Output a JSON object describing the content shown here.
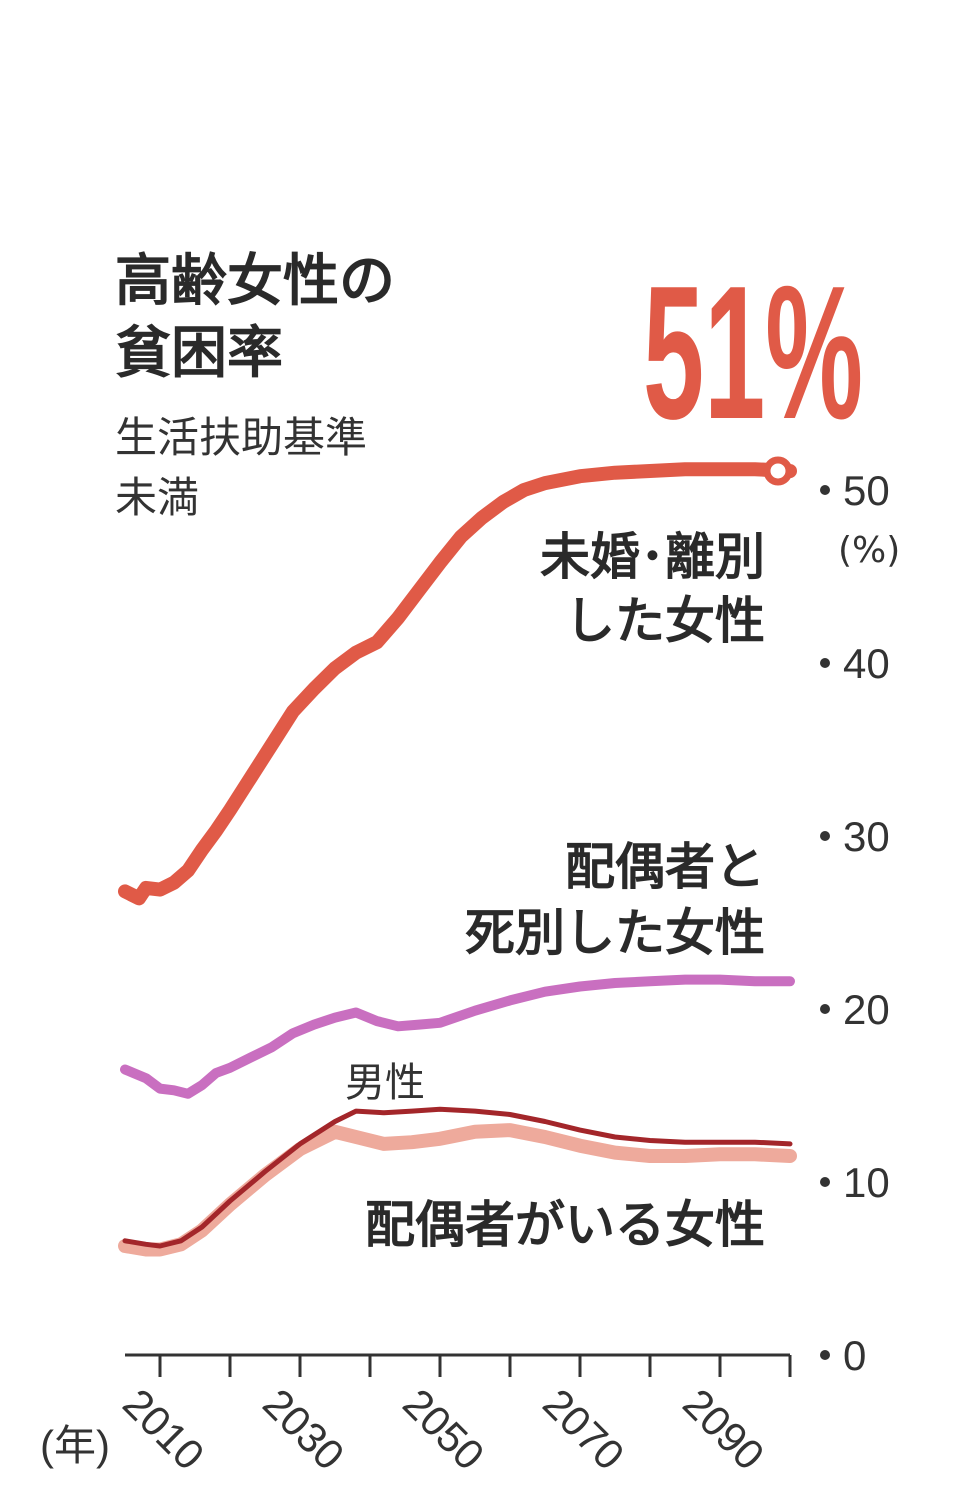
{
  "chart_data": {
    "type": "line",
    "title": "高齢女性の貧困率",
    "title_lines": [
      "高齢女性の",
      "貧困率"
    ],
    "subtitle": "生活扶助基準未満",
    "subtitle_lines": [
      "生活扶助基準",
      "未満"
    ],
    "headline_value": "51%",
    "y_unit": "(%)",
    "x_unit": "(年)",
    "xlim": [
      2005,
      2100
    ],
    "ylim": [
      0,
      50
    ],
    "y_ticks": [
      0,
      10,
      20,
      30,
      40,
      50
    ],
    "x_ticks": [
      2010,
      2030,
      2050,
      2070,
      2090
    ],
    "x_minor_ticks": [
      2010,
      2020,
      2030,
      2040,
      2050,
      2060,
      2070,
      2080,
      2090,
      2100
    ],
    "grid": false,
    "legend": "none",
    "series": [
      {
        "name": "未婚・離別した女性",
        "label_lines": [
          "未婚･離別",
          "した女性"
        ],
        "color": "#e05a47",
        "stroke": "thick",
        "end_marker": "open-circle",
        "x": [
          2005,
          2007,
          2008,
          2010,
          2012,
          2014,
          2016,
          2018,
          2020,
          2023,
          2026,
          2029,
          2032,
          2035,
          2038,
          2041,
          2044,
          2047,
          2050,
          2053,
          2056,
          2059,
          2062,
          2065,
          2070,
          2075,
          2080,
          2085,
          2090,
          2095,
          2100
        ],
        "values": [
          26.8,
          26.4,
          27.0,
          26.9,
          27.3,
          28.0,
          29.2,
          30.3,
          31.5,
          33.4,
          35.3,
          37.2,
          38.5,
          39.7,
          40.6,
          41.2,
          42.6,
          44.2,
          45.8,
          47.3,
          48.4,
          49.3,
          50.0,
          50.4,
          50.8,
          51.0,
          51.1,
          51.2,
          51.2,
          51.2,
          51.1
        ]
      },
      {
        "name": "配偶者と死別した女性",
        "label_lines": [
          "配偶者と",
          "死別した女性"
        ],
        "color": "#c96fc0",
        "stroke": "medium",
        "x": [
          2005,
          2008,
          2010,
          2012,
          2014,
          2016,
          2018,
          2020,
          2023,
          2026,
          2029,
          2032,
          2035,
          2038,
          2041,
          2044,
          2047,
          2050,
          2055,
          2060,
          2065,
          2070,
          2075,
          2080,
          2085,
          2090,
          2095,
          2100
        ],
        "values": [
          16.5,
          16.0,
          15.4,
          15.3,
          15.1,
          15.6,
          16.3,
          16.6,
          17.2,
          17.8,
          18.6,
          19.1,
          19.5,
          19.8,
          19.3,
          19.0,
          19.1,
          19.2,
          19.9,
          20.5,
          21.0,
          21.3,
          21.5,
          21.6,
          21.7,
          21.7,
          21.6,
          21.6
        ]
      },
      {
        "name": "男性",
        "label_lines": [
          "男性"
        ],
        "color": "#a3262a",
        "stroke": "thin",
        "x": [
          2005,
          2008,
          2010,
          2013,
          2016,
          2020,
          2025,
          2030,
          2035,
          2038,
          2042,
          2046,
          2050,
          2055,
          2060,
          2065,
          2070,
          2075,
          2080,
          2085,
          2090,
          2095,
          2100
        ],
        "values": [
          6.6,
          6.4,
          6.3,
          6.6,
          7.4,
          8.9,
          10.6,
          12.2,
          13.5,
          14.1,
          14.0,
          14.1,
          14.2,
          14.1,
          13.9,
          13.5,
          13.0,
          12.6,
          12.4,
          12.3,
          12.3,
          12.3,
          12.2
        ]
      },
      {
        "name": "配偶者がいる女性",
        "label_lines": [
          "配偶者がいる女性"
        ],
        "color": "#eeaa9c",
        "stroke": "thick",
        "x": [
          2005,
          2008,
          2010,
          2013,
          2016,
          2020,
          2025,
          2030,
          2035,
          2038,
          2042,
          2046,
          2050,
          2055,
          2060,
          2065,
          2070,
          2075,
          2080,
          2085,
          2090,
          2095,
          2100
        ],
        "values": [
          6.3,
          6.1,
          6.1,
          6.4,
          7.2,
          8.7,
          10.4,
          11.9,
          12.9,
          12.6,
          12.2,
          12.3,
          12.5,
          12.9,
          13.0,
          12.6,
          12.1,
          11.7,
          11.5,
          11.5,
          11.6,
          11.6,
          11.5
        ]
      }
    ]
  }
}
